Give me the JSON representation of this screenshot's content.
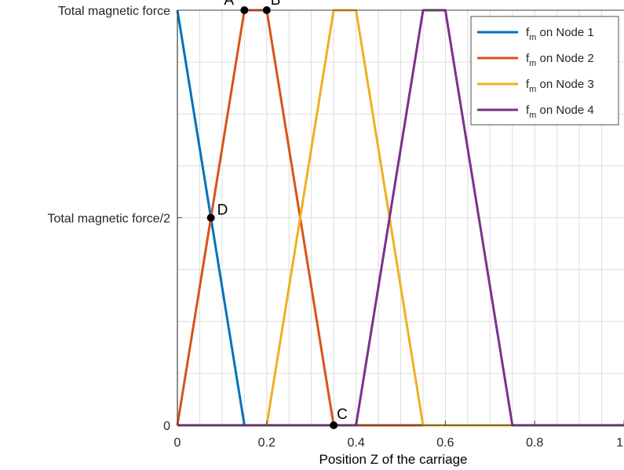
{
  "chart_data": {
    "type": "line",
    "xlabel": "Position Z of the carriage",
    "ylabel": "",
    "xlim": [
      0,
      1
    ],
    "ylim": [
      0,
      1
    ],
    "grid": true,
    "legend_position": "top-right",
    "x_ticks": [
      {
        "value": 0,
        "label": "0"
      },
      {
        "value": 0.2,
        "label": "0.2"
      },
      {
        "value": 0.4,
        "label": "0.4"
      },
      {
        "value": 0.6,
        "label": "0.6"
      },
      {
        "value": 0.8,
        "label": "0.8"
      },
      {
        "value": 1,
        "label": "1"
      }
    ],
    "y_ticks": [
      {
        "value": 0,
        "label": "0"
      },
      {
        "value": 0.5,
        "label": "Total magnetic force/2"
      },
      {
        "value": 1,
        "label": "Total magnetic force"
      }
    ],
    "series": [
      {
        "name": "on Node 1",
        "symbol": "f",
        "subscript": "m",
        "color": "#0072BD",
        "x": [
          0,
          0.15,
          1
        ],
        "y": [
          1,
          0,
          0
        ]
      },
      {
        "name": "on Node 2",
        "symbol": "f",
        "subscript": "m",
        "color": "#D95319",
        "x": [
          0,
          0.15,
          0.2,
          0.35,
          1
        ],
        "y": [
          0,
          1,
          1,
          0,
          0
        ]
      },
      {
        "name": "on Node 3",
        "symbol": "f",
        "subscript": "m",
        "color": "#EDB120",
        "x": [
          0,
          0.2,
          0.35,
          0.4,
          0.55,
          1
        ],
        "y": [
          0,
          0,
          1,
          1,
          0,
          0
        ]
      },
      {
        "name": "on Node 4",
        "symbol": "f",
        "subscript": "m",
        "color": "#7E2F8E",
        "x": [
          0,
          0.4,
          0.55,
          0.6,
          0.75,
          1
        ],
        "y": [
          0,
          0,
          1,
          1,
          0,
          0
        ]
      }
    ],
    "annotations": [
      {
        "label": "A",
        "x": 0.15,
        "y": 1
      },
      {
        "label": "B",
        "x": 0.2,
        "y": 1
      },
      {
        "label": "C",
        "x": 0.35,
        "y": 0
      },
      {
        "label": "D",
        "x": 0.075,
        "y": 0.5
      }
    ]
  }
}
